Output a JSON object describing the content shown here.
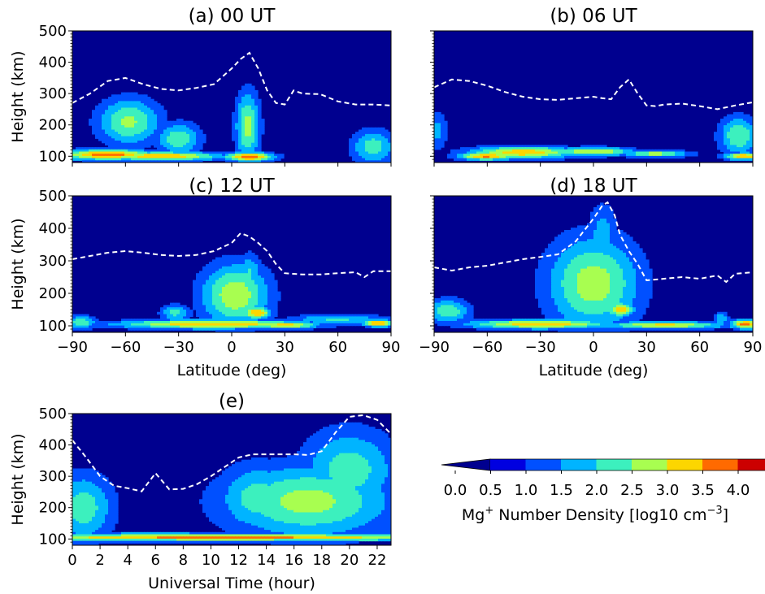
{
  "chart_data": [
    {
      "type": "heatmap",
      "title": "(a) 00 UT",
      "ylabel": "Height (km)",
      "xlabel": "",
      "xlim": [
        -90,
        90
      ],
      "ylim": [
        80,
        500
      ],
      "yticks": [
        100,
        200,
        300,
        400,
        500
      ],
      "xticks": [
        -90,
        -60,
        -30,
        0,
        30,
        60,
        90
      ],
      "dashed_line": {
        "x": [
          -90,
          -80,
          -70,
          -60,
          -50,
          -40,
          -30,
          -20,
          -10,
          0,
          5,
          10,
          15,
          20,
          25,
          30,
          35,
          40,
          50,
          60,
          70,
          80,
          90
        ],
        "y": [
          270,
          300,
          340,
          350,
          330,
          315,
          310,
          318,
          330,
          380,
          410,
          430,
          380,
          310,
          270,
          265,
          310,
          300,
          298,
          275,
          265,
          265,
          262
        ]
      },
      "blobs": [
        {
          "x": -58,
          "y": 210,
          "sx": 13,
          "sy": 55,
          "v": 2.1
        },
        {
          "x": -30,
          "y": 155,
          "sx": 9,
          "sy": 38,
          "v": 1.9
        },
        {
          "x": 9,
          "y": 195,
          "sx": 5,
          "sy": 80,
          "v": 2.2
        },
        {
          "x": 80,
          "y": 130,
          "sx": 9,
          "sy": 40,
          "v": 1.8
        },
        {
          "x": -70,
          "y": 105,
          "sx": 20,
          "sy": 12,
          "v": 3.3
        },
        {
          "x": -40,
          "y": 100,
          "sx": 25,
          "sy": 10,
          "v": 3.0
        },
        {
          "x": 10,
          "y": 98,
          "sx": 10,
          "sy": 10,
          "v": 3.4
        }
      ]
    },
    {
      "type": "heatmap",
      "title": "(b) 06 UT",
      "ylabel": "",
      "xlabel": "",
      "xlim": [
        -90,
        90
      ],
      "ylim": [
        80,
        500
      ],
      "yticks": [
        100,
        200,
        300,
        400,
        500
      ],
      "xticks": [
        -90,
        -60,
        -30,
        0,
        30,
        60,
        90
      ],
      "dashed_line": {
        "x": [
          -90,
          -80,
          -70,
          -60,
          -50,
          -40,
          -30,
          -20,
          -10,
          0,
          5,
          10,
          15,
          20,
          25,
          30,
          35,
          40,
          50,
          60,
          70,
          80,
          90
        ],
        "y": [
          320,
          345,
          340,
          325,
          305,
          290,
          282,
          280,
          285,
          290,
          285,
          282,
          320,
          345,
          300,
          262,
          260,
          265,
          268,
          260,
          250,
          262,
          272
        ]
      },
      "blobs": [
        {
          "x": -88,
          "y": 180,
          "sx": 4,
          "sy": 45,
          "v": 1.2
        },
        {
          "x": 82,
          "y": 165,
          "sx": 8,
          "sy": 45,
          "v": 2.0
        },
        {
          "x": -40,
          "y": 112,
          "sx": 22,
          "sy": 14,
          "v": 2.9
        },
        {
          "x": -60,
          "y": 100,
          "sx": 12,
          "sy": 8,
          "v": 3.2
        },
        {
          "x": 0,
          "y": 115,
          "sx": 16,
          "sy": 10,
          "v": 2.6
        },
        {
          "x": 35,
          "y": 108,
          "sx": 14,
          "sy": 8,
          "v": 2.3
        },
        {
          "x": 85,
          "y": 100,
          "sx": 8,
          "sy": 8,
          "v": 3.0
        }
      ]
    },
    {
      "type": "heatmap",
      "title": "(c) 12 UT",
      "ylabel": "Height (km)",
      "xlabel": "Latitude (deg)",
      "xlim": [
        -90,
        90
      ],
      "ylim": [
        80,
        500
      ],
      "yticks": [
        100,
        200,
        300,
        400,
        500
      ],
      "xticks": [
        -90,
        -60,
        -30,
        0,
        30,
        60,
        90
      ],
      "xticklabels": [
        "−90",
        "−60",
        "−30",
        "0",
        "30",
        "60",
        "90"
      ],
      "dashed_line": {
        "x": [
          -90,
          -80,
          -70,
          -60,
          -50,
          -40,
          -30,
          -20,
          -10,
          0,
          5,
          10,
          15,
          20,
          25,
          30,
          40,
          50,
          60,
          70,
          75,
          80,
          90
        ],
        "y": [
          305,
          315,
          325,
          330,
          325,
          318,
          315,
          318,
          330,
          355,
          385,
          375,
          355,
          330,
          290,
          262,
          258,
          258,
          262,
          265,
          250,
          268,
          268
        ]
      },
      "blobs": [
        {
          "x": 2,
          "y": 195,
          "sx": 14,
          "sy": 70,
          "v": 2.4
        },
        {
          "x": 10,
          "y": 260,
          "sx": 5,
          "sy": 45,
          "v": 1.6
        },
        {
          "x": -32,
          "y": 140,
          "sx": 6,
          "sy": 18,
          "v": 1.7
        },
        {
          "x": 14,
          "y": 140,
          "sx": 6,
          "sy": 14,
          "v": 3.0
        },
        {
          "x": -10,
          "y": 105,
          "sx": 40,
          "sy": 10,
          "v": 3.0
        },
        {
          "x": 30,
          "y": 102,
          "sx": 14,
          "sy": 8,
          "v": 2.8
        },
        {
          "x": 83,
          "y": 108,
          "sx": 6,
          "sy": 8,
          "v": 3.2
        },
        {
          "x": -85,
          "y": 110,
          "sx": 6,
          "sy": 15,
          "v": 2.0
        },
        {
          "x": 60,
          "y": 120,
          "sx": 20,
          "sy": 12,
          "v": 1.6
        }
      ]
    },
    {
      "type": "heatmap",
      "title": "(d) 18 UT",
      "ylabel": "",
      "xlabel": "Latitude (deg)",
      "xlim": [
        -90,
        90
      ],
      "ylim": [
        80,
        500
      ],
      "yticks": [
        100,
        200,
        300,
        400,
        500
      ],
      "xticks": [
        -90,
        -60,
        -30,
        0,
        30,
        60,
        90
      ],
      "xticklabels": [
        "−90",
        "−60",
        "−30",
        "0",
        "30",
        "60",
        "90"
      ],
      "dashed_line": {
        "x": [
          -90,
          -80,
          -70,
          -60,
          -50,
          -40,
          -30,
          -20,
          -10,
          0,
          5,
          8,
          12,
          15,
          20,
          25,
          30,
          40,
          50,
          60,
          70,
          75,
          80,
          90
        ],
        "y": [
          280,
          270,
          280,
          285,
          295,
          305,
          312,
          320,
          360,
          430,
          470,
          480,
          440,
          380,
          330,
          290,
          240,
          245,
          250,
          245,
          255,
          235,
          260,
          265
        ]
      },
      "blobs": [
        {
          "x": 0,
          "y": 230,
          "sx": 19,
          "sy": 105,
          "v": 2.3
        },
        {
          "x": 5,
          "y": 380,
          "sx": 6,
          "sy": 70,
          "v": 1.3
        },
        {
          "x": -82,
          "y": 145,
          "sx": 9,
          "sy": 28,
          "v": 1.9
        },
        {
          "x": 15,
          "y": 150,
          "sx": 6,
          "sy": 16,
          "v": 2.8
        },
        {
          "x": -30,
          "y": 105,
          "sx": 30,
          "sy": 10,
          "v": 2.9
        },
        {
          "x": 40,
          "y": 102,
          "sx": 25,
          "sy": 8,
          "v": 2.7
        },
        {
          "x": 86,
          "y": 105,
          "sx": 6,
          "sy": 10,
          "v": 3.3
        },
        {
          "x": 72,
          "y": 120,
          "sx": 3,
          "sy": 18,
          "v": 1.5
        }
      ]
    },
    {
      "type": "heatmap",
      "title": "(e)",
      "ylabel": "Height (km)",
      "xlabel": "Universal Time (hour)",
      "xlim": [
        0,
        23
      ],
      "ylim": [
        80,
        500
      ],
      "yticks": [
        100,
        200,
        300,
        400,
        500
      ],
      "xticks": [
        0,
        2,
        4,
        6,
        8,
        10,
        12,
        14,
        16,
        18,
        20,
        22
      ],
      "dashed_line": {
        "x": [
          0,
          1,
          2,
          3,
          4,
          5,
          6,
          7,
          8,
          9,
          10,
          11,
          12,
          13,
          14,
          15,
          16,
          17,
          18,
          19,
          20,
          21,
          22,
          23
        ],
        "y": [
          415,
          360,
          300,
          270,
          262,
          252,
          310,
          258,
          260,
          275,
          300,
          330,
          360,
          370,
          370,
          370,
          370,
          368,
          380,
          440,
          490,
          495,
          480,
          435
        ]
      },
      "blobs": [
        {
          "x": 17,
          "y": 220,
          "sx": 4.5,
          "sy": 85,
          "v": 2.2
        },
        {
          "x": 20,
          "y": 320,
          "sx": 2.5,
          "sy": 95,
          "v": 1.8
        },
        {
          "x": 13.5,
          "y": 230,
          "sx": 2.2,
          "sy": 80,
          "v": 1.8
        },
        {
          "x": 0.8,
          "y": 200,
          "sx": 1.6,
          "sy": 80,
          "v": 1.8
        },
        {
          "x": 11,
          "y": 105,
          "sx": 14,
          "sy": 8,
          "v": 3.2
        },
        {
          "x": 6,
          "y": 115,
          "sx": 3,
          "sy": 6,
          "v": 1.7
        }
      ]
    }
  ],
  "colorbar": {
    "levels": [
      0.0,
      0.5,
      1.0,
      1.5,
      2.0,
      2.5,
      3.0,
      3.5,
      4.0
    ],
    "ticklabels": [
      "0.0",
      "0.5",
      "1.0",
      "1.5",
      "2.0",
      "2.5",
      "3.0",
      "3.5",
      "4.0"
    ],
    "colors": [
      "#00008f",
      "#0000e0",
      "#0050ff",
      "#00b4ff",
      "#3cf0be",
      "#a8fe50",
      "#fcd600",
      "#ff6a00",
      "#cc0000",
      "#7f0000"
    ],
    "label_prefix": "Mg",
    "label_sup": "+",
    "label_middle": " Number Density [log10 cm",
    "label_exp": "−3",
    "label_suffix": "]"
  },
  "dashed_color": "#ffffff",
  "background_color": "#00008f"
}
